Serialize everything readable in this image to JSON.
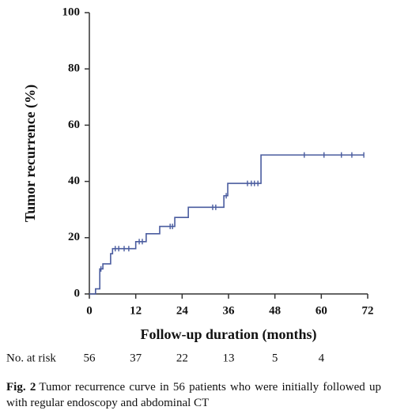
{
  "chart_data": {
    "type": "line",
    "ylabel": "Tumor recurrence (%)",
    "xlabel": "Follow-up duration (months)",
    "xlim": [
      0,
      72
    ],
    "ylim": [
      0,
      100
    ],
    "xticks": [
      0,
      12,
      24,
      36,
      48,
      60,
      72
    ],
    "yticks": [
      0,
      20,
      40,
      60,
      80,
      100
    ],
    "color": "#4a5c9f",
    "x": [
      0,
      1.6,
      1.6,
      2.7,
      2.7,
      3.5,
      3.5,
      5.5,
      5.5,
      6,
      6,
      12,
      12,
      14.7,
      14.7,
      18.2,
      18.2,
      22.1,
      22.1,
      25.6,
      25.6,
      34.8,
      34.8,
      35.8,
      35.8,
      44.4,
      44.4,
      71
    ],
    "values": [
      0,
      0,
      1.8,
      1.8,
      8.9,
      8.9,
      10.7,
      10.7,
      14.3,
      14.3,
      16.1,
      16.1,
      18.6,
      18.6,
      21.4,
      21.4,
      24,
      24,
      27.2,
      27.2,
      30.8,
      30.8,
      34.9,
      34.9,
      39.3,
      39.3,
      49.4,
      49.4
    ],
    "censored": {
      "x": [
        3,
        6.7,
        7.6,
        9,
        10.2,
        12.9,
        13.7,
        20.9,
        21.5,
        31.9,
        32.7,
        35.4,
        40.9,
        41.9,
        42.7,
        43.6,
        55.6,
        60.7,
        65.2,
        67.9,
        71
      ],
      "values": [
        8.9,
        16.1,
        16.1,
        16.1,
        16.1,
        18.6,
        18.6,
        24,
        24,
        30.8,
        30.8,
        34.9,
        39.3,
        39.3,
        39.3,
        39.3,
        49.4,
        49.4,
        49.4,
        49.4,
        49.4
      ]
    },
    "at_risk": {
      "label": "No. at risk",
      "x": [
        0,
        12,
        24,
        36,
        48,
        60
      ],
      "values": [
        56,
        37,
        22,
        13,
        5,
        4
      ]
    }
  },
  "caption": {
    "label": "Fig. 2",
    "text": "Tumor recurrence curve in 56 patients who were initially followed up with regular endoscopy and abdominal CT"
  }
}
